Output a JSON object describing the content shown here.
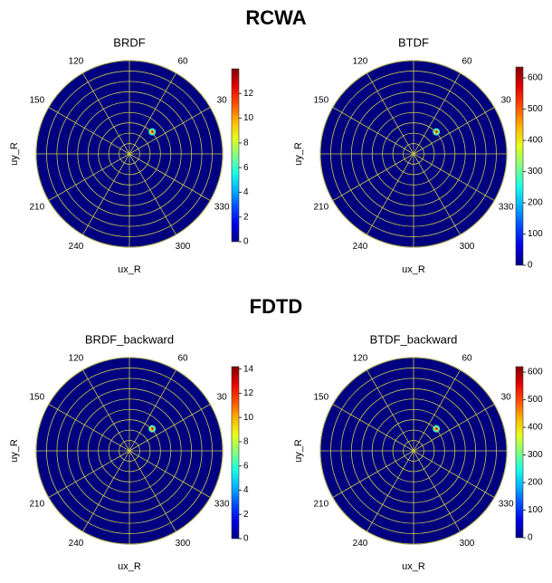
{
  "sections": [
    {
      "title": "RCWA"
    },
    {
      "title": "FDTD"
    }
  ],
  "chart_data": [
    {
      "type": "polar-heatmap",
      "title": "BRDF",
      "xlabel": "ux_R",
      "ylabel": "uy_R",
      "colormap": "jet",
      "grid": true,
      "angle_ticks": [
        30,
        60,
        120,
        150,
        210,
        240,
        300,
        330
      ],
      "clim": [
        0,
        14
      ],
      "cticks": [
        0,
        2,
        4,
        6,
        8,
        10,
        12
      ],
      "spot": {
        "r": 0.34,
        "theta": 44,
        "value": 14
      }
    },
    {
      "type": "polar-heatmap",
      "title": "BTDF",
      "xlabel": "ux_R",
      "ylabel": "uy_R",
      "colormap": "jet",
      "grid": true,
      "angle_ticks": [
        30,
        60,
        120,
        150,
        210,
        240,
        300,
        330
      ],
      "clim": [
        0,
        635
      ],
      "cticks": [
        0,
        100,
        200,
        300,
        400,
        500,
        600
      ],
      "spot": {
        "r": 0.34,
        "theta": 44,
        "value": 635
      }
    },
    {
      "type": "polar-heatmap",
      "title": "BRDF_backward",
      "xlabel": "ux_R",
      "ylabel": "uy_R",
      "colormap": "jet",
      "grid": true,
      "angle_ticks": [
        30,
        60,
        120,
        150,
        210,
        240,
        300,
        330
      ],
      "clim": [
        0,
        14.2
      ],
      "cticks": [
        0,
        2,
        4,
        6,
        8,
        10,
        12,
        14
      ],
      "spot": {
        "r": 0.34,
        "theta": 44,
        "value": 14.2
      }
    },
    {
      "type": "polar-heatmap",
      "title": "BTDF_backward",
      "xlabel": "ux_R",
      "ylabel": "uy_R",
      "colormap": "jet",
      "grid": true,
      "angle_ticks": [
        30,
        60,
        120,
        150,
        210,
        240,
        300,
        330
      ],
      "clim": [
        0,
        620
      ],
      "cticks": [
        0,
        100,
        200,
        300,
        400,
        500,
        600
      ],
      "spot": {
        "r": 0.34,
        "theta": 44,
        "value": 620
      }
    }
  ]
}
